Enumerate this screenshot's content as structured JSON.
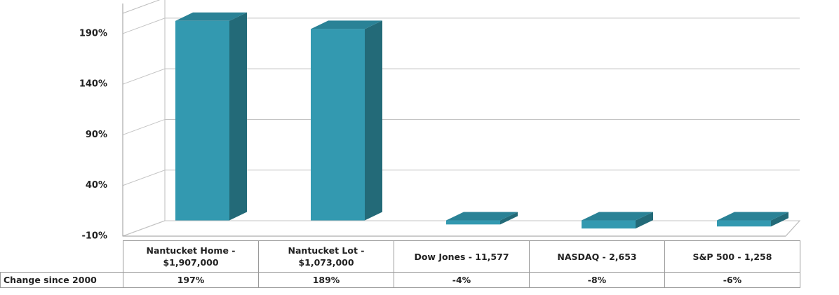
{
  "chart_data": {
    "type": "bar3d",
    "categories": [
      "Nantucket Home - $1,907,000",
      "Nantucket Lot - $1,073,000",
      "Dow Jones - 11,577",
      "NASDAQ - 2,653",
      "S&P 500 - 1,258"
    ],
    "table_row_label": "Change since 2000",
    "values": [
      197,
      189,
      -4,
      -8,
      -6
    ],
    "value_labels": [
      "197%",
      "189%",
      "-4%",
      "-8%",
      "-6%"
    ],
    "color": "#3399b0",
    "ylim": [
      -10,
      210
    ],
    "yticks": [
      {
        "value": -10,
        "label": "-10%"
      },
      {
        "value": 40,
        "label": "40%"
      },
      {
        "value": 90,
        "label": "90%"
      },
      {
        "value": 140,
        "label": "140%"
      },
      {
        "value": 190,
        "label": "190%"
      }
    ],
    "grid": true
  }
}
